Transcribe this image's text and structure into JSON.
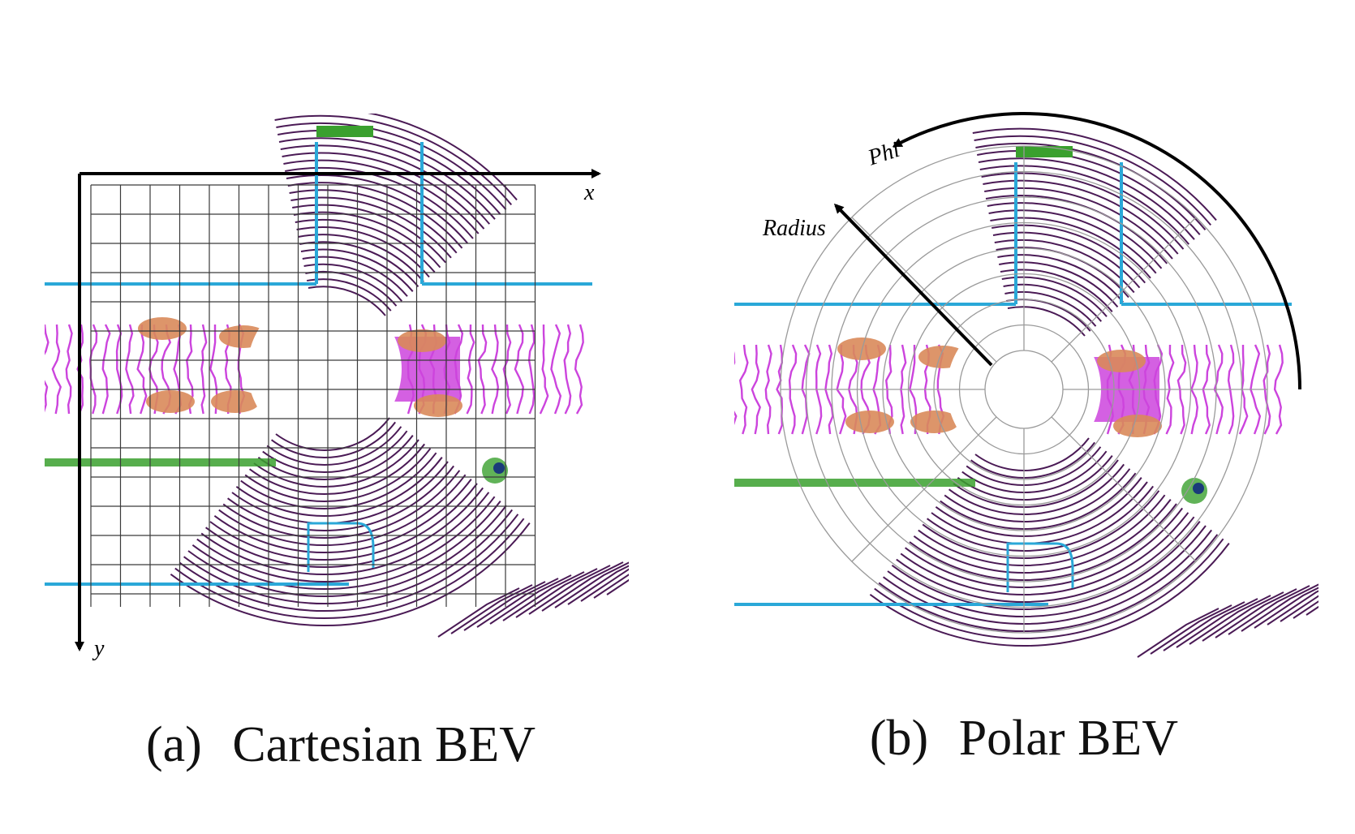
{
  "panels": {
    "cartesian": {
      "caption_index": "(a)",
      "caption_text": "Cartesian BEV",
      "axis_x_label": "x",
      "axis_y_label": "y"
    },
    "polar": {
      "caption_index": "(b)",
      "caption_text": "Polar BEV",
      "phi_label": "Phi",
      "radius_label": "Radius"
    }
  },
  "colors": {
    "road_points": "#cc44dd",
    "near_ground": "#4a1a55",
    "boundary": "#2aa8d8",
    "vegetation": "#3aa02e",
    "cars": "#d98a5a",
    "grid": "#3a3a3a",
    "polar_grid": "#9a9a9a",
    "axis": "#000000"
  }
}
